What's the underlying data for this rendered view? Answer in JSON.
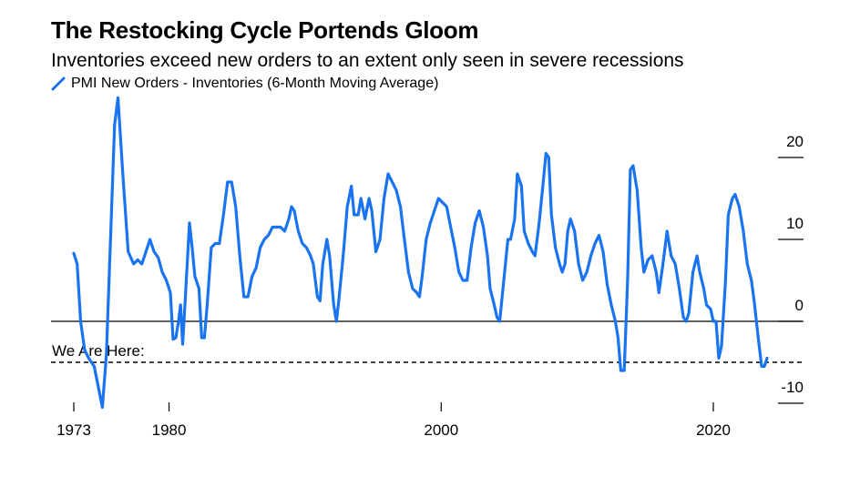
{
  "title": "The Restocking Cycle Portends Gloom",
  "subtitle": "Inventories exceed new orders to an extent only seen in severe recessions",
  "colors": {
    "series": "#1a73f0",
    "axis": "#000000"
  },
  "chart_data": {
    "type": "line",
    "title": "The Restocking Cycle Portends Gloom",
    "subtitle": "Inventories exceed new orders to an extent only seen in severe recessions",
    "series": [
      {
        "name": "PMI New Orders - Inventories (6-Month Moving Average)",
        "points": [
          [
            1973.0,
            8.3
          ],
          [
            1973.25,
            7.0
          ],
          [
            1973.5,
            0.0
          ],
          [
            1973.8,
            -3.5
          ],
          [
            1974.1,
            -4.5
          ],
          [
            1974.5,
            -5.5
          ],
          [
            1974.8,
            -8.0
          ],
          [
            1975.1,
            -10.5
          ],
          [
            1975.4,
            -4.0
          ],
          [
            1975.7,
            10.0
          ],
          [
            1976.0,
            24.0
          ],
          [
            1976.25,
            27.3
          ],
          [
            1976.6,
            18.0
          ],
          [
            1977.0,
            8.5
          ],
          [
            1977.4,
            7.0
          ],
          [
            1977.7,
            7.5
          ],
          [
            1978.0,
            7.0
          ],
          [
            1978.3,
            8.5
          ],
          [
            1978.6,
            10.0
          ],
          [
            1978.9,
            8.5
          ],
          [
            1979.2,
            7.8
          ],
          [
            1979.5,
            6.0
          ],
          [
            1979.8,
            5.0
          ],
          [
            1980.1,
            3.5
          ],
          [
            1980.3,
            -2.2
          ],
          [
            1980.5,
            -2.0
          ],
          [
            1980.7,
            0.0
          ],
          [
            1980.85,
            2.0
          ],
          [
            1981.0,
            -2.8
          ],
          [
            1981.2,
            3.0
          ],
          [
            1981.5,
            12.0
          ],
          [
            1981.7,
            9.0
          ],
          [
            1981.9,
            5.5
          ],
          [
            1982.2,
            4.0
          ],
          [
            1982.4,
            -2.0
          ],
          [
            1982.6,
            -2.0
          ],
          [
            1982.8,
            2.0
          ],
          [
            1983.1,
            9.0
          ],
          [
            1983.4,
            9.5
          ],
          [
            1983.7,
            9.5
          ],
          [
            1984.0,
            13.0
          ],
          [
            1984.3,
            17.0
          ],
          [
            1984.6,
            17.0
          ],
          [
            1984.9,
            14.0
          ],
          [
            1985.2,
            8.0
          ],
          [
            1985.5,
            3.0
          ],
          [
            1985.8,
            3.0
          ],
          [
            1986.1,
            5.5
          ],
          [
            1986.4,
            6.5
          ],
          [
            1986.7,
            9.0
          ],
          [
            1987.0,
            10.0
          ],
          [
            1987.3,
            10.5
          ],
          [
            1987.6,
            11.5
          ],
          [
            1987.9,
            11.5
          ],
          [
            1988.2,
            11.5
          ],
          [
            1988.5,
            11.0
          ],
          [
            1988.8,
            12.5
          ],
          [
            1989.0,
            14.0
          ],
          [
            1989.2,
            13.5
          ],
          [
            1989.5,
            11.0
          ],
          [
            1989.8,
            9.5
          ],
          [
            1990.1,
            9.0
          ],
          [
            1990.4,
            8.0
          ],
          [
            1990.6,
            7.0
          ],
          [
            1990.9,
            3.0
          ],
          [
            1991.1,
            2.5
          ],
          [
            1991.3,
            7.0
          ],
          [
            1991.6,
            10.0
          ],
          [
            1991.8,
            8.0
          ],
          [
            1992.1,
            2.0
          ],
          [
            1992.3,
            0.0
          ],
          [
            1992.5,
            3.0
          ],
          [
            1992.8,
            8.0
          ],
          [
            1993.1,
            14.0
          ],
          [
            1993.4,
            16.5
          ],
          [
            1993.6,
            13.0
          ],
          [
            1993.9,
            13.0
          ],
          [
            1994.1,
            15.0
          ],
          [
            1994.4,
            12.5
          ],
          [
            1994.7,
            15.0
          ],
          [
            1994.9,
            13.5
          ],
          [
            1995.2,
            8.5
          ],
          [
            1995.5,
            10.0
          ],
          [
            1995.8,
            15.0
          ],
          [
            1996.1,
            18.0
          ],
          [
            1996.4,
            17.0
          ],
          [
            1996.7,
            16.0
          ],
          [
            1997.0,
            14.0
          ],
          [
            1997.3,
            10.0
          ],
          [
            1997.6,
            6.0
          ],
          [
            1997.9,
            4.0
          ],
          [
            1998.2,
            3.5
          ],
          [
            1998.4,
            3.0
          ],
          [
            1998.6,
            5.5
          ],
          [
            1998.9,
            10.0
          ],
          [
            1999.2,
            12.0
          ],
          [
            1999.5,
            13.5
          ],
          [
            1999.8,
            15.0
          ],
          [
            2000.1,
            14.5
          ],
          [
            2000.4,
            14.0
          ],
          [
            2000.7,
            11.5
          ],
          [
            2001.0,
            9.0
          ],
          [
            2001.3,
            6.0
          ],
          [
            2001.6,
            5.0
          ],
          [
            2001.9,
            5.0
          ],
          [
            2002.2,
            9.0
          ],
          [
            2002.5,
            12.0
          ],
          [
            2002.8,
            13.5
          ],
          [
            2003.1,
            11.5
          ],
          [
            2003.4,
            8.0
          ],
          [
            2003.6,
            4.0
          ],
          [
            2003.9,
            2.0
          ],
          [
            2004.1,
            0.5
          ],
          [
            2004.3,
            0.0
          ],
          [
            2004.6,
            5.0
          ],
          [
            2004.9,
            10.0
          ],
          [
            2005.1,
            10.0
          ],
          [
            2005.4,
            12.5
          ],
          [
            2005.6,
            18.0
          ],
          [
            2005.9,
            16.5
          ],
          [
            2006.1,
            11.0
          ],
          [
            2006.4,
            9.5
          ],
          [
            2006.7,
            8.5
          ],
          [
            2006.9,
            8.0
          ],
          [
            2007.2,
            12.0
          ],
          [
            2007.5,
            17.0
          ],
          [
            2007.7,
            20.5
          ],
          [
            2007.9,
            20.0
          ],
          [
            2008.1,
            13.0
          ],
          [
            2008.4,
            9.0
          ],
          [
            2008.7,
            7.0
          ],
          [
            2008.9,
            6.0
          ],
          [
            2009.1,
            7.0
          ],
          [
            2009.3,
            11.0
          ],
          [
            2009.5,
            12.5
          ],
          [
            2009.8,
            11.0
          ],
          [
            2010.1,
            7.0
          ],
          [
            2010.4,
            5.0
          ],
          [
            2010.7,
            6.0
          ],
          [
            2011.0,
            8.0
          ],
          [
            2011.3,
            9.5
          ],
          [
            2011.6,
            10.5
          ],
          [
            2011.9,
            8.5
          ],
          [
            2012.2,
            4.5
          ],
          [
            2012.5,
            2.0
          ],
          [
            2012.8,
            0.0
          ],
          [
            2013.0,
            -2.0
          ],
          [
            2013.2,
            -6.0
          ],
          [
            2013.45,
            -6.0
          ],
          [
            2013.7,
            5.0
          ],
          [
            2013.9,
            18.5
          ],
          [
            2014.1,
            19.0
          ],
          [
            2014.4,
            16.0
          ],
          [
            2014.7,
            9.0
          ],
          [
            2014.9,
            6.0
          ],
          [
            2015.2,
            7.5
          ],
          [
            2015.5,
            8.0
          ],
          [
            2015.8,
            6.0
          ],
          [
            2016.0,
            3.5
          ],
          [
            2016.3,
            7.0
          ],
          [
            2016.6,
            11.0
          ],
          [
            2016.9,
            8.0
          ],
          [
            2017.2,
            7.0
          ],
          [
            2017.5,
            4.0
          ],
          [
            2017.8,
            0.5
          ],
          [
            2018.0,
            0.0
          ],
          [
            2018.2,
            1.0
          ],
          [
            2018.5,
            6.0
          ],
          [
            2018.8,
            8.0
          ],
          [
            2019.0,
            6.0
          ],
          [
            2019.3,
            4.0
          ],
          [
            2019.5,
            2.0
          ],
          [
            2019.8,
            1.5
          ],
          [
            2020.0,
            0.0
          ],
          [
            2020.2,
            0.0
          ],
          [
            2020.4,
            -4.5
          ],
          [
            2020.6,
            -3.0
          ],
          [
            2020.9,
            5.0
          ],
          [
            2021.1,
            13.0
          ],
          [
            2021.4,
            15.0
          ],
          [
            2021.6,
            15.5
          ],
          [
            2021.9,
            14.0
          ],
          [
            2022.2,
            11.0
          ],
          [
            2022.5,
            7.0
          ],
          [
            2022.8,
            5.0
          ],
          [
            2023.0,
            2.5
          ],
          [
            2023.3,
            -2.0
          ],
          [
            2023.55,
            -5.5
          ],
          [
            2023.75,
            -5.5
          ],
          [
            2023.95,
            -4.5
          ]
        ]
      }
    ],
    "xticks": [
      "1973",
      "1980",
      "2000",
      "2020"
    ],
    "yticks": [
      "-10",
      "0",
      "10",
      "20"
    ],
    "xlim": [
      1973,
      2024
    ],
    "ylim": [
      -10.5,
      27.5
    ],
    "reference_lines": [
      {
        "y": 0,
        "style": "solid"
      },
      {
        "y": -5,
        "style": "dashed",
        "label": "We Are Here:"
      }
    ],
    "legend_position": "top-left",
    "grid": false
  }
}
